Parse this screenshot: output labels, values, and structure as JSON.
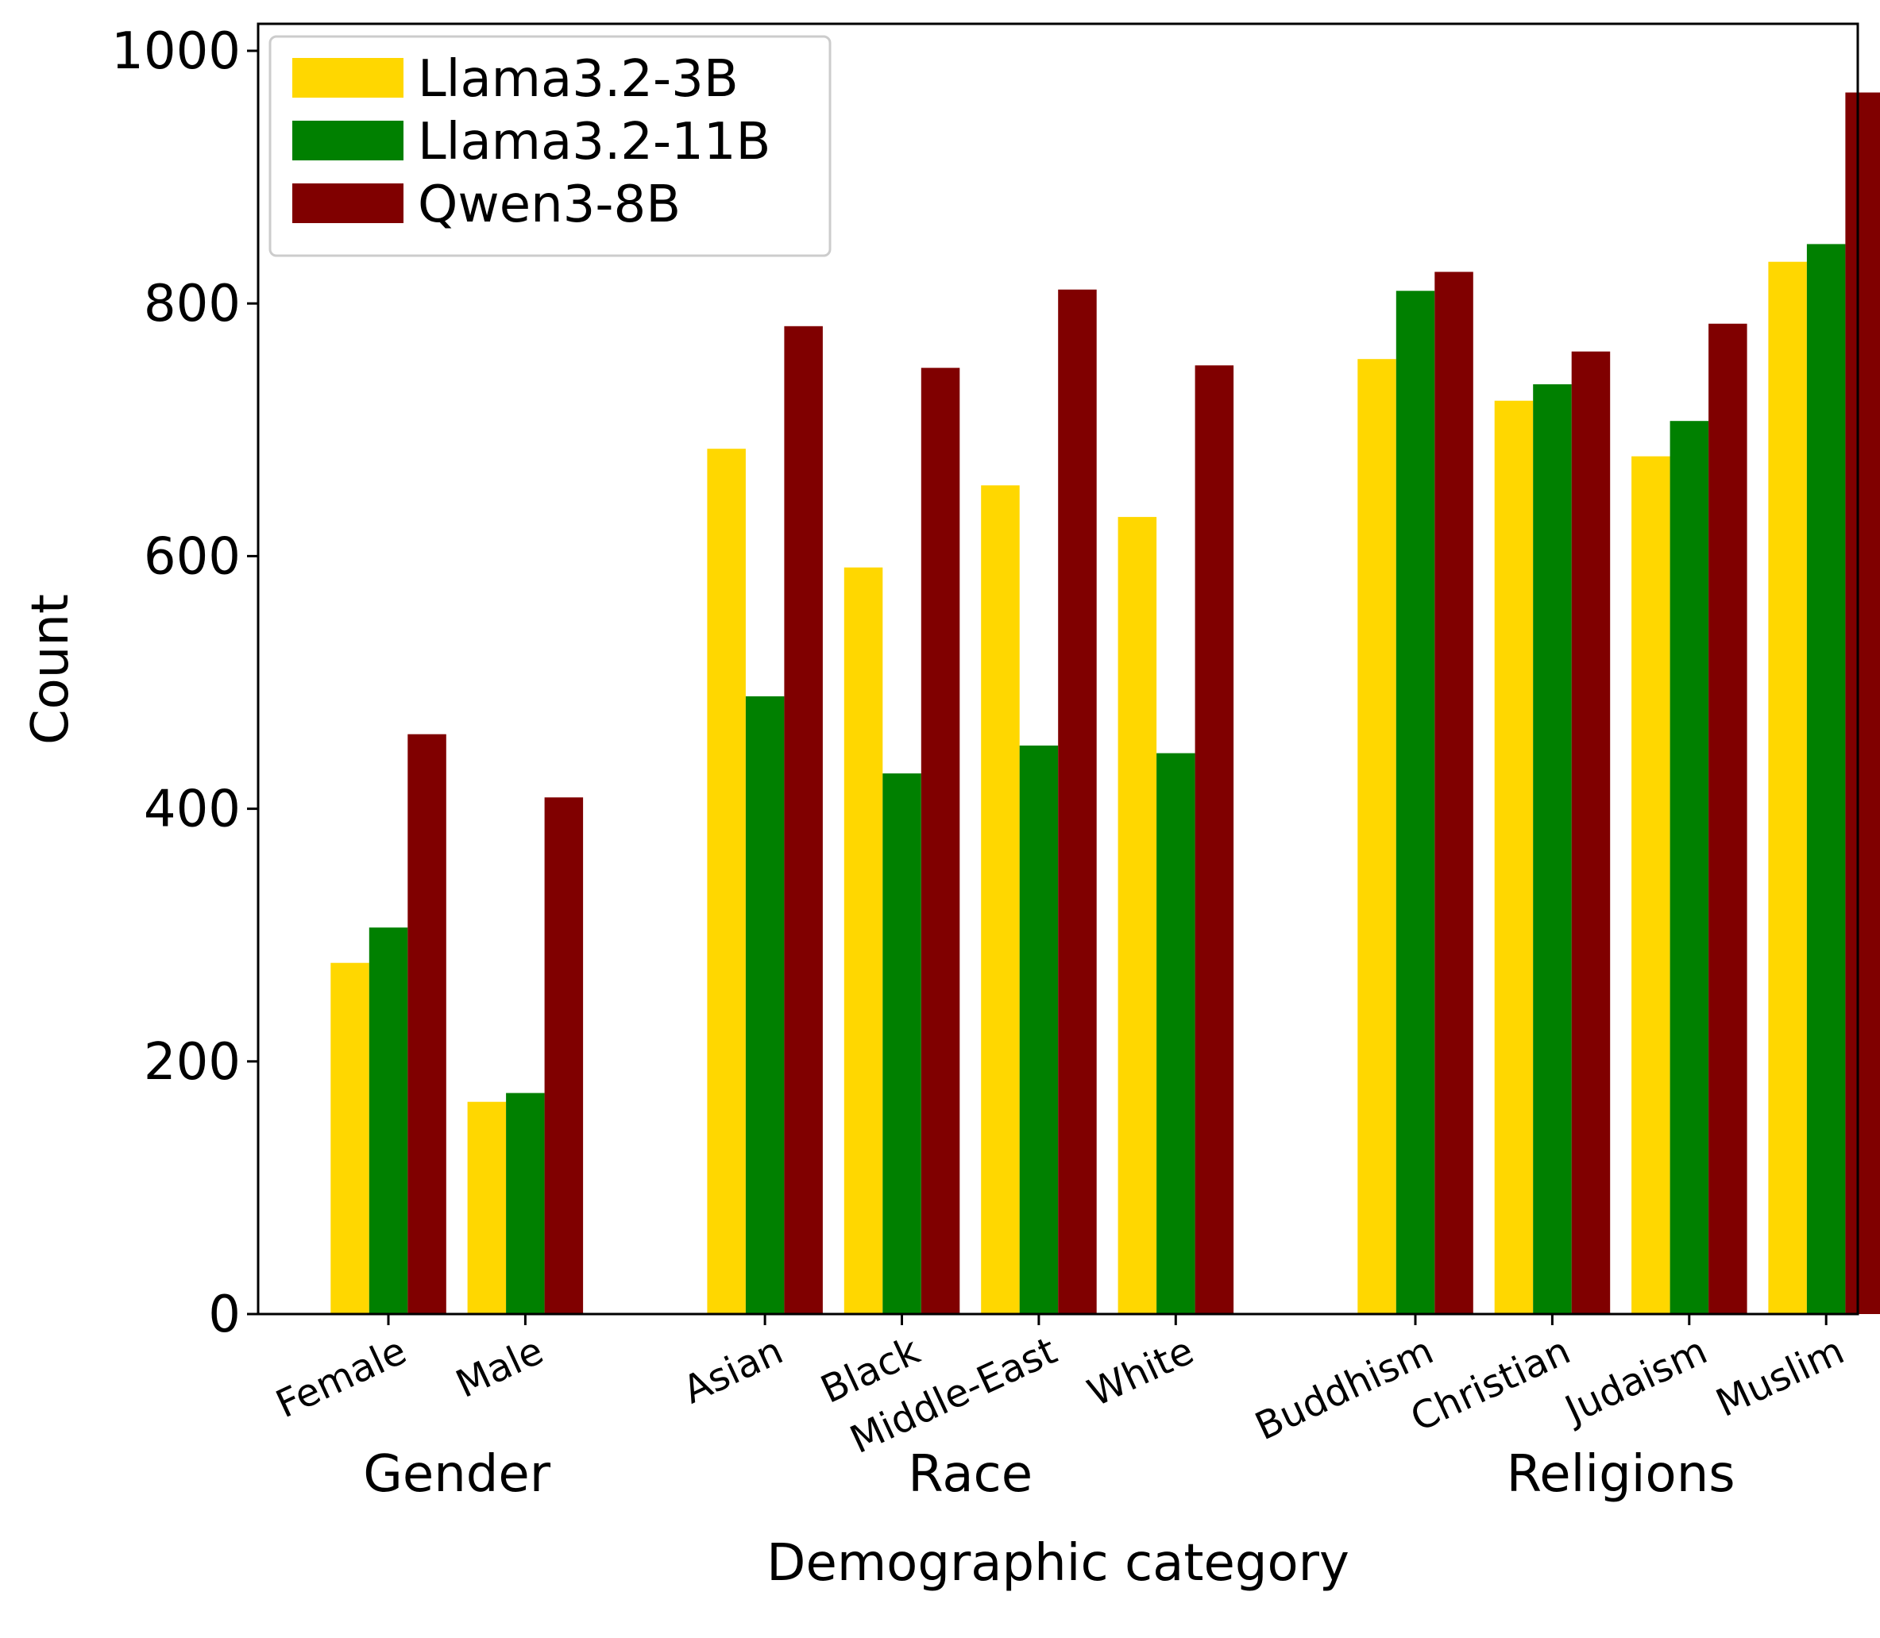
{
  "chart_data": {
    "type": "bar",
    "title": "",
    "xlabel": "Demographic category",
    "ylabel": "Count",
    "ylim": [
      0,
      1000
    ],
    "yticks": [
      0,
      200,
      400,
      600,
      800,
      1000
    ],
    "grid": false,
    "legend_position": "top-left",
    "categories": [
      "Female",
      "Male",
      "Asian",
      "Black",
      "Middle-East",
      "White",
      "Buddhism",
      "Christian",
      "Judaism",
      "Muslim"
    ],
    "groups": [
      {
        "label": "Gender",
        "categories": [
          "Female",
          "Male"
        ]
      },
      {
        "label": "Race",
        "categories": [
          "Asian",
          "Black",
          "Middle-East",
          "White"
        ]
      },
      {
        "label": "Religions",
        "categories": [
          "Buddhism",
          "Christian",
          "Judaism",
          "Muslim"
        ]
      }
    ],
    "series": [
      {
        "name": "Llama3.2-3B",
        "color": "#FFD700",
        "values": [
          278,
          168,
          685,
          591,
          656,
          631,
          756,
          723,
          679,
          833
        ]
      },
      {
        "name": "Llama3.2-11B",
        "color": "#008000",
        "values": [
          306,
          175,
          489,
          428,
          450,
          444,
          810,
          736,
          707,
          847
        ]
      },
      {
        "name": "Qwen3-8B",
        "color": "#800000",
        "values": [
          459,
          409,
          782,
          749,
          811,
          751,
          825,
          762,
          784,
          967
        ]
      }
    ]
  }
}
